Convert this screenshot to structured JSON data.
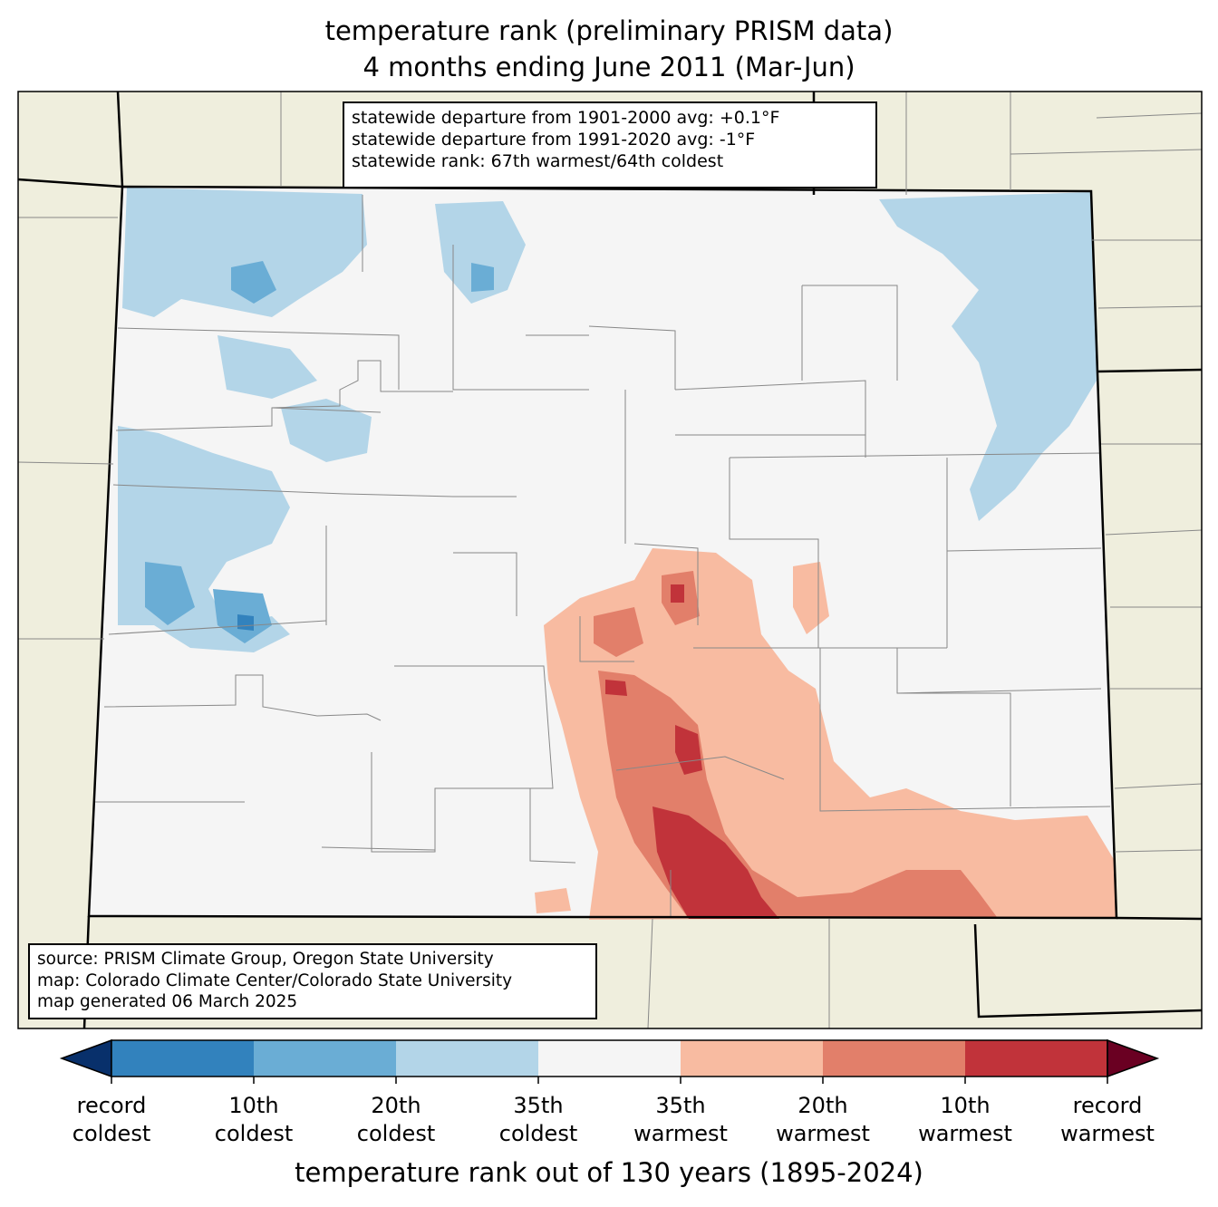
{
  "title": {
    "line1": "temperature rank (preliminary PRISM data)",
    "line2": "4 months ending June 2011 (Mar-Jun)"
  },
  "stats": {
    "line1": "statewide departure from 1901-2000 avg: +0.1°F",
    "line2": "statewide departure from 1991-2020 avg: -1°F",
    "line3": "statewide rank: 67th warmest/64th coldest"
  },
  "source": {
    "line1": "source: PRISM Climate Group, Oregon State University",
    "line2": "map: Colorado Climate Center/Colorado State University",
    "line3": "map generated 06 March 2025"
  },
  "colorbar": {
    "label": "temperature rank out of 130 years (1895-2024)",
    "ticks": [
      {
        "line1": "record",
        "line2": "coldest"
      },
      {
        "line1": "10th",
        "line2": "coldest"
      },
      {
        "line1": "20th",
        "line2": "coldest"
      },
      {
        "line1": "35th",
        "line2": "coldest"
      },
      {
        "line1": "35th",
        "line2": "warmest"
      },
      {
        "line1": "20th",
        "line2": "warmest"
      },
      {
        "line1": "10th",
        "line2": "warmest"
      },
      {
        "line1": "record",
        "line2": "warmest"
      }
    ],
    "colors": [
      "#08306b",
      "#3282bd",
      "#6aadd5",
      "#b3d5e8",
      "#f5f5f5",
      "#f8bba1",
      "#e27f6a",
      "#c1333a",
      "#6a0022"
    ]
  },
  "map_colors": {
    "outside_land": "#efeedd",
    "colorado_neutral": "#f5f5f5",
    "county_lines": "#888888",
    "state_lines": "#000000"
  }
}
